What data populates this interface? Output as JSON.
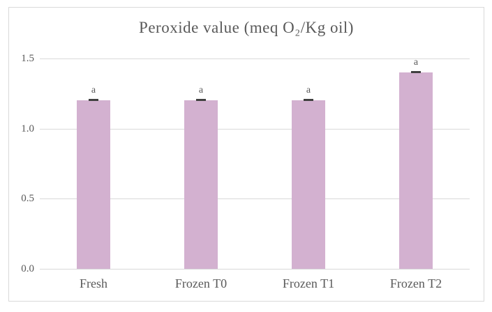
{
  "figure": {
    "background": "#FFFFFF",
    "border_color": "#D9D9D9"
  },
  "chart_data": {
    "type": "bar",
    "title": "Peroxide value (meq O₂/Kg oil)",
    "categories": [
      "Fresh",
      "Frozen T0",
      "Frozen T1",
      "Frozen T2"
    ],
    "values": [
      1.2,
      1.2,
      1.2,
      1.4
    ],
    "bar_annotations": [
      "a",
      "a",
      "a",
      "a"
    ],
    "error_bars": [
      0.01,
      0.01,
      0.01,
      0.01
    ],
    "ylim": [
      0,
      1.5
    ],
    "yticks": [
      0.0,
      0.5,
      1.0,
      1.5
    ],
    "ytick_labels": [
      "0.0",
      "0.5",
      "1.0",
      "1.5"
    ],
    "xlabel": "",
    "ylabel": "",
    "grid": true,
    "legend": "none",
    "bar_color": "#D3B1D0",
    "error_color": "#404040",
    "text_color": "#595959",
    "grid_color": "#D9D9D9"
  }
}
